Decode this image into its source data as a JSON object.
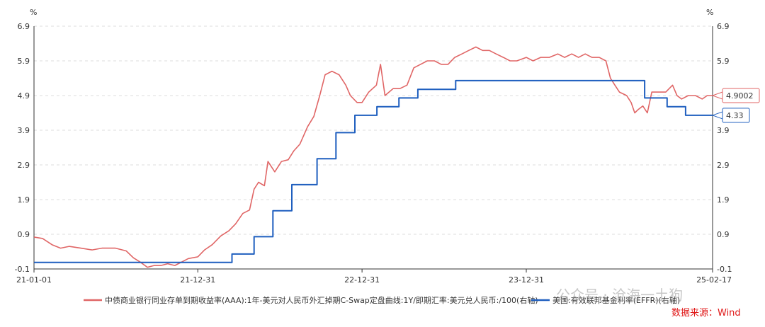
{
  "chart_data": {
    "type": "line",
    "left_unit": "%",
    "right_unit": "%",
    "y_ticks": [
      "6.9",
      "5.9",
      "4.9",
      "3.9",
      "2.9",
      "1.9",
      "0.9",
      "-0.1"
    ],
    "ylim": [
      -0.1,
      6.9
    ],
    "x_ticks": [
      {
        "label": "21-01-01",
        "date": "2021-01-01"
      },
      {
        "label": "21-12-31",
        "date": "2021-12-31"
      },
      {
        "label": "22-12-31",
        "date": "2022-12-31"
      },
      {
        "label": "23-12-31",
        "date": "2023-12-31"
      },
      {
        "label": "25-02-17",
        "date": "2025-02-17"
      }
    ],
    "xlim": [
      "2021-01-01",
      "2025-02-17"
    ],
    "grid": true,
    "legend_position": "bottom",
    "series": [
      {
        "name": "中债商业银行同业存单到期收益率(AAA):1年-美元对人民币外汇掉期C-Swap定盘曲线:1Y/即期汇率:美元兑人民币:/100(右轴)",
        "color": "#e06666",
        "shape": "linear",
        "last_label": "4.9002",
        "points": [
          [
            "2021-01-01",
            0.82
          ],
          [
            "2021-01-20",
            0.78
          ],
          [
            "2021-02-10",
            0.6
          ],
          [
            "2021-03-01",
            0.5
          ],
          [
            "2021-03-20",
            0.55
          ],
          [
            "2021-04-15",
            0.5
          ],
          [
            "2021-05-10",
            0.45
          ],
          [
            "2021-06-01",
            0.5
          ],
          [
            "2021-07-01",
            0.5
          ],
          [
            "2021-07-25",
            0.42
          ],
          [
            "2021-08-10",
            0.22
          ],
          [
            "2021-08-25",
            0.1
          ],
          [
            "2021-09-10",
            -0.05
          ],
          [
            "2021-09-25",
            0.0
          ],
          [
            "2021-10-10",
            0.0
          ],
          [
            "2021-10-25",
            0.05
          ],
          [
            "2021-11-10",
            0.0
          ],
          [
            "2021-11-25",
            0.1
          ],
          [
            "2021-12-10",
            0.2
          ],
          [
            "2021-12-31",
            0.25
          ],
          [
            "2022-01-15",
            0.45
          ],
          [
            "2022-02-01",
            0.6
          ],
          [
            "2022-02-20",
            0.85
          ],
          [
            "2022-03-10",
            1.0
          ],
          [
            "2022-03-25",
            1.2
          ],
          [
            "2022-04-10",
            1.5
          ],
          [
            "2022-04-25",
            1.6
          ],
          [
            "2022-05-05",
            2.2
          ],
          [
            "2022-05-15",
            2.4
          ],
          [
            "2022-05-28",
            2.3
          ],
          [
            "2022-06-05",
            3.0
          ],
          [
            "2022-06-20",
            2.7
          ],
          [
            "2022-07-05",
            3.0
          ],
          [
            "2022-07-20",
            3.05
          ],
          [
            "2022-08-01",
            3.3
          ],
          [
            "2022-08-15",
            3.5
          ],
          [
            "2022-09-01",
            4.0
          ],
          [
            "2022-09-15",
            4.3
          ],
          [
            "2022-09-28",
            4.9
          ],
          [
            "2022-10-10",
            5.5
          ],
          [
            "2022-10-25",
            5.6
          ],
          [
            "2022-11-10",
            5.5
          ],
          [
            "2022-11-25",
            5.2
          ],
          [
            "2022-12-05",
            4.9
          ],
          [
            "2022-12-20",
            4.7
          ],
          [
            "2022-12-31",
            4.7
          ],
          [
            "2023-01-15",
            5.0
          ],
          [
            "2023-02-01",
            5.2
          ],
          [
            "2023-02-10",
            5.8
          ],
          [
            "2023-02-20",
            4.9
          ],
          [
            "2023-03-10",
            5.1
          ],
          [
            "2023-03-25",
            5.1
          ],
          [
            "2023-04-10",
            5.2
          ],
          [
            "2023-04-25",
            5.7
          ],
          [
            "2023-05-10",
            5.8
          ],
          [
            "2023-05-25",
            5.9
          ],
          [
            "2023-06-10",
            5.9
          ],
          [
            "2023-06-25",
            5.8
          ],
          [
            "2023-07-10",
            5.8
          ],
          [
            "2023-07-25",
            6.0
          ],
          [
            "2023-08-10",
            6.1
          ],
          [
            "2023-08-25",
            6.2
          ],
          [
            "2023-09-10",
            6.3
          ],
          [
            "2023-09-25",
            6.2
          ],
          [
            "2023-10-10",
            6.2
          ],
          [
            "2023-10-25",
            6.1
          ],
          [
            "2023-11-10",
            6.0
          ],
          [
            "2023-11-25",
            5.9
          ],
          [
            "2023-12-10",
            5.9
          ],
          [
            "2023-12-31",
            6.0
          ],
          [
            "2024-01-15",
            5.9
          ],
          [
            "2024-02-01",
            6.0
          ],
          [
            "2024-02-20",
            6.0
          ],
          [
            "2024-03-10",
            6.1
          ],
          [
            "2024-03-25",
            6.0
          ],
          [
            "2024-04-10",
            6.1
          ],
          [
            "2024-04-25",
            6.0
          ],
          [
            "2024-05-10",
            6.1
          ],
          [
            "2024-05-25",
            6.0
          ],
          [
            "2024-06-10",
            6.0
          ],
          [
            "2024-06-25",
            5.9
          ],
          [
            "2024-07-05",
            5.4
          ],
          [
            "2024-07-15",
            5.2
          ],
          [
            "2024-07-25",
            5.0
          ],
          [
            "2024-08-10",
            4.9
          ],
          [
            "2024-08-20",
            4.7
          ],
          [
            "2024-08-28",
            4.4
          ],
          [
            "2024-09-05",
            4.5
          ],
          [
            "2024-09-15",
            4.6
          ],
          [
            "2024-09-25",
            4.4
          ],
          [
            "2024-10-05",
            5.0
          ],
          [
            "2024-10-20",
            5.0
          ],
          [
            "2024-11-05",
            5.0
          ],
          [
            "2024-11-20",
            5.2
          ],
          [
            "2024-11-30",
            4.9
          ],
          [
            "2024-12-10",
            4.8
          ],
          [
            "2024-12-25",
            4.9
          ],
          [
            "2025-01-10",
            4.9
          ],
          [
            "2025-01-25",
            4.8
          ],
          [
            "2025-02-05",
            4.9
          ],
          [
            "2025-02-17",
            4.9
          ]
        ]
      },
      {
        "name": "美国:有效联邦基金利率(EFFR)(右轴)",
        "color": "#1f5fbf",
        "shape": "step",
        "last_label": "4.33",
        "points": [
          [
            "2021-01-01",
            0.09
          ],
          [
            "2022-03-17",
            0.33
          ],
          [
            "2022-05-05",
            0.83
          ],
          [
            "2022-06-16",
            1.58
          ],
          [
            "2022-07-28",
            2.33
          ],
          [
            "2022-09-22",
            3.08
          ],
          [
            "2022-11-03",
            3.83
          ],
          [
            "2022-12-15",
            4.33
          ],
          [
            "2023-02-02",
            4.58
          ],
          [
            "2023-03-23",
            4.83
          ],
          [
            "2023-05-04",
            5.08
          ],
          [
            "2023-07-27",
            5.33
          ],
          [
            "2024-09-19",
            4.83
          ],
          [
            "2024-11-08",
            4.58
          ],
          [
            "2024-12-19",
            4.33
          ],
          [
            "2025-02-17",
            4.33
          ]
        ]
      }
    ],
    "source_text": "数据来源：Wind",
    "watermark": "公众号 · 沧海一土狗"
  }
}
